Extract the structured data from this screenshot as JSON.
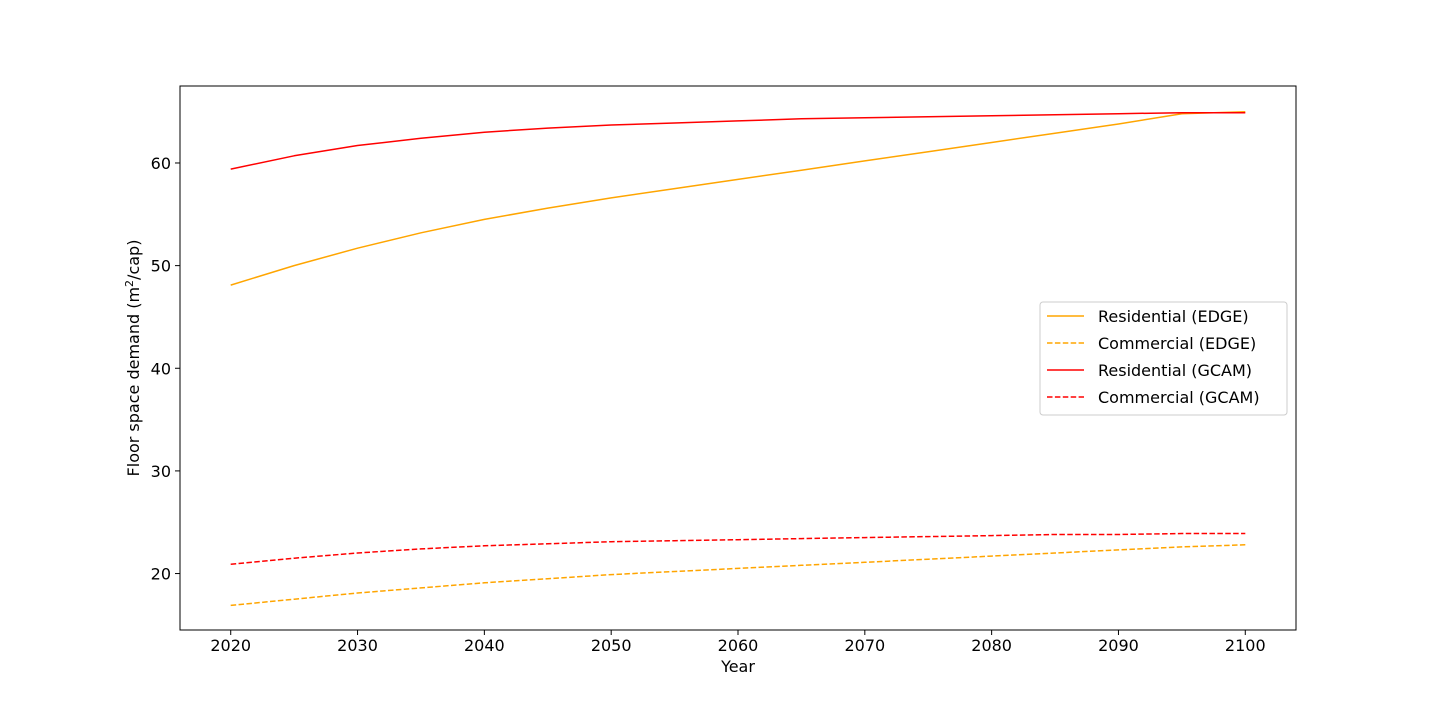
{
  "chart_data": {
    "type": "line",
    "title": "",
    "xlabel": "Year",
    "ylabel_main": "Floor space demand (m",
    "ylabel_sup": "2",
    "ylabel_tail": "/cap)",
    "xlim": [
      2016,
      2104
    ],
    "ylim": [
      14.5,
      67.5
    ],
    "x_ticks": [
      2020,
      2030,
      2040,
      2050,
      2060,
      2070,
      2080,
      2090,
      2100
    ],
    "y_ticks": [
      20,
      30,
      40,
      50,
      60
    ],
    "grid": false,
    "legend_position": "center-right",
    "x": [
      2020,
      2025,
      2030,
      2035,
      2040,
      2045,
      2050,
      2055,
      2060,
      2065,
      2070,
      2075,
      2080,
      2085,
      2090,
      2095,
      2100
    ],
    "series": [
      {
        "name": "Residential (EDGE)",
        "color": "#FFA500",
        "dash": "solid",
        "values": [
          48.1,
          50.0,
          51.7,
          53.2,
          54.5,
          55.6,
          56.6,
          57.5,
          58.4,
          59.3,
          60.2,
          61.1,
          62.0,
          62.9,
          63.8,
          64.8,
          65.0
        ]
      },
      {
        "name": "Commercial (EDGE)",
        "color": "#FFA500",
        "dash": "dashed",
        "values": [
          16.9,
          17.5,
          18.1,
          18.6,
          19.1,
          19.5,
          19.9,
          20.2,
          20.5,
          20.8,
          21.1,
          21.4,
          21.7,
          22.0,
          22.3,
          22.6,
          22.8
        ]
      },
      {
        "name": "Residential (GCAM)",
        "color": "#FF0000",
        "dash": "solid",
        "values": [
          59.4,
          60.7,
          61.7,
          62.4,
          63.0,
          63.4,
          63.7,
          63.9,
          64.1,
          64.3,
          64.4,
          64.5,
          64.6,
          64.7,
          64.8,
          64.9,
          64.9
        ]
      },
      {
        "name": "Commercial (GCAM)",
        "color": "#FF0000",
        "dash": "dashed",
        "values": [
          20.9,
          21.5,
          22.0,
          22.4,
          22.7,
          22.9,
          23.1,
          23.2,
          23.3,
          23.4,
          23.5,
          23.6,
          23.7,
          23.8,
          23.8,
          23.9,
          23.9
        ]
      }
    ]
  }
}
